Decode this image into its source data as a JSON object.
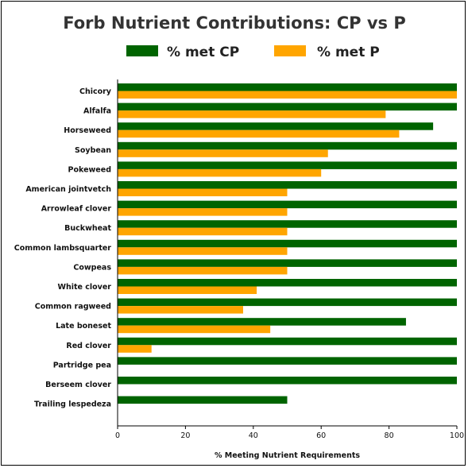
{
  "chart_data": {
    "type": "bar",
    "orientation": "horizontal",
    "title": "Forb Nutrient Contributions: CP vs P",
    "xlabel": "% Meeting Nutrient Requirements",
    "ylabel": "",
    "xlim": [
      0,
      100
    ],
    "xticks": [
      0,
      20,
      40,
      60,
      80,
      100
    ],
    "legend_position": "top",
    "grid": false,
    "categories": [
      "Chicory",
      "Alfalfa",
      "Horseweed",
      "Soybean",
      "Pokeweed",
      "American jointvetch",
      "Arrowleaf clover",
      "Buckwheat",
      "Common lambsquarter",
      "Cowpeas",
      "White clover",
      "Common ragweed",
      "Late boneset",
      "Red clover",
      "Partridge pea",
      "Berseem clover",
      "Trailing lespedeza"
    ],
    "series": [
      {
        "name": "% met CP",
        "color": "#006400",
        "values": [
          100,
          100,
          93,
          100,
          100,
          100,
          100,
          100,
          100,
          100,
          100,
          100,
          85,
          100,
          100,
          100,
          50
        ]
      },
      {
        "name": "% met P",
        "color": "#FFA500",
        "values": [
          100,
          79,
          83,
          62,
          60,
          50,
          50,
          50,
          50,
          50,
          41,
          37,
          45,
          10,
          0,
          0,
          0
        ]
      }
    ]
  }
}
